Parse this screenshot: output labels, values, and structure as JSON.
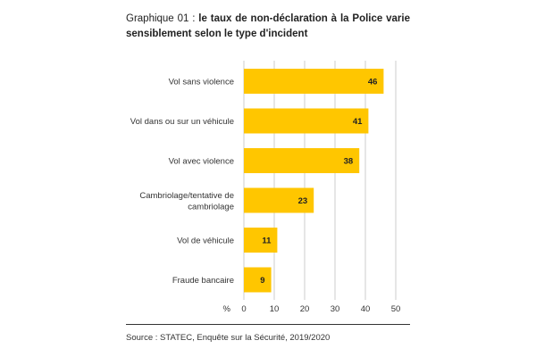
{
  "chart_data": {
    "type": "bar",
    "orientation": "horizontal",
    "title_prefix": "Graphique 01 : ",
    "title": "le taux de non-déclaration à la Police varie sensiblement selon le type d'incident",
    "categories": [
      [
        "Vol sans violence"
      ],
      [
        "Vol dans ou sur un véhicule"
      ],
      [
        "Vol avec violence"
      ],
      [
        "Cambriolage/tentative de",
        "cambriolage"
      ],
      [
        "Vol de véhicule"
      ],
      [
        "Fraude bancaire"
      ]
    ],
    "values": [
      46,
      41,
      38,
      23,
      11,
      9
    ],
    "x_unit": "%",
    "xlim": [
      0,
      50
    ],
    "xticks": [
      0,
      10,
      20,
      30,
      40,
      50
    ],
    "grid": "vertical",
    "bar_color": "#FFC600",
    "grid_color": "#CCCCCC",
    "source": "Source : STATEC, Enquête sur la Sécurité, 2019/2020"
  }
}
